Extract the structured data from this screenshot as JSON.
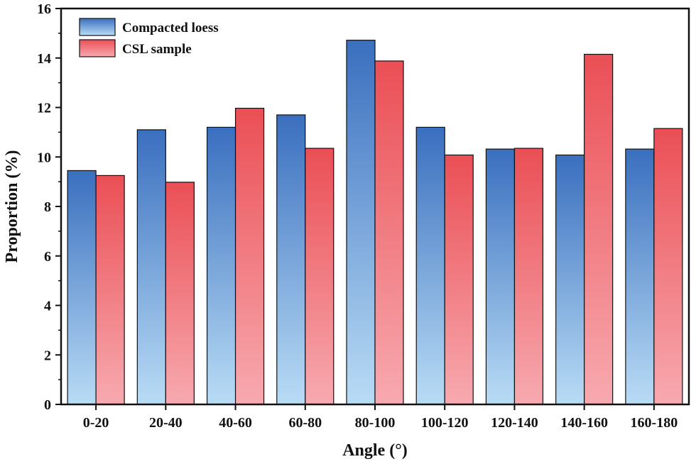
{
  "chart_data": {
    "type": "bar",
    "title": "",
    "xlabel": "Angle (°)",
    "ylabel": "Proportion (%)",
    "ylim": [
      0,
      16
    ],
    "yticks": [
      0,
      2,
      4,
      6,
      8,
      10,
      12,
      14,
      16
    ],
    "categories": [
      "0-20",
      "20-40",
      "40-60",
      "60-80",
      "80-100",
      "100-120",
      "120-140",
      "140-160",
      "160-180"
    ],
    "series": [
      {
        "name": "Compacted loess",
        "values": [
          9.45,
          11.1,
          11.2,
          11.7,
          14.72,
          11.2,
          10.32,
          10.08,
          10.32
        ]
      },
      {
        "name": "CSL sample",
        "values": [
          9.25,
          8.98,
          11.97,
          10.35,
          13.88,
          10.08,
          10.35,
          14.15,
          11.15
        ]
      }
    ],
    "legend_position": "top-left",
    "grid": false
  },
  "colors": {
    "series_1_top": "#3a6fbf",
    "series_1_bottom": "#b9dcf5",
    "series_2_top": "#ea4f55",
    "series_2_bottom": "#f7aab0",
    "axis": "#111111"
  }
}
